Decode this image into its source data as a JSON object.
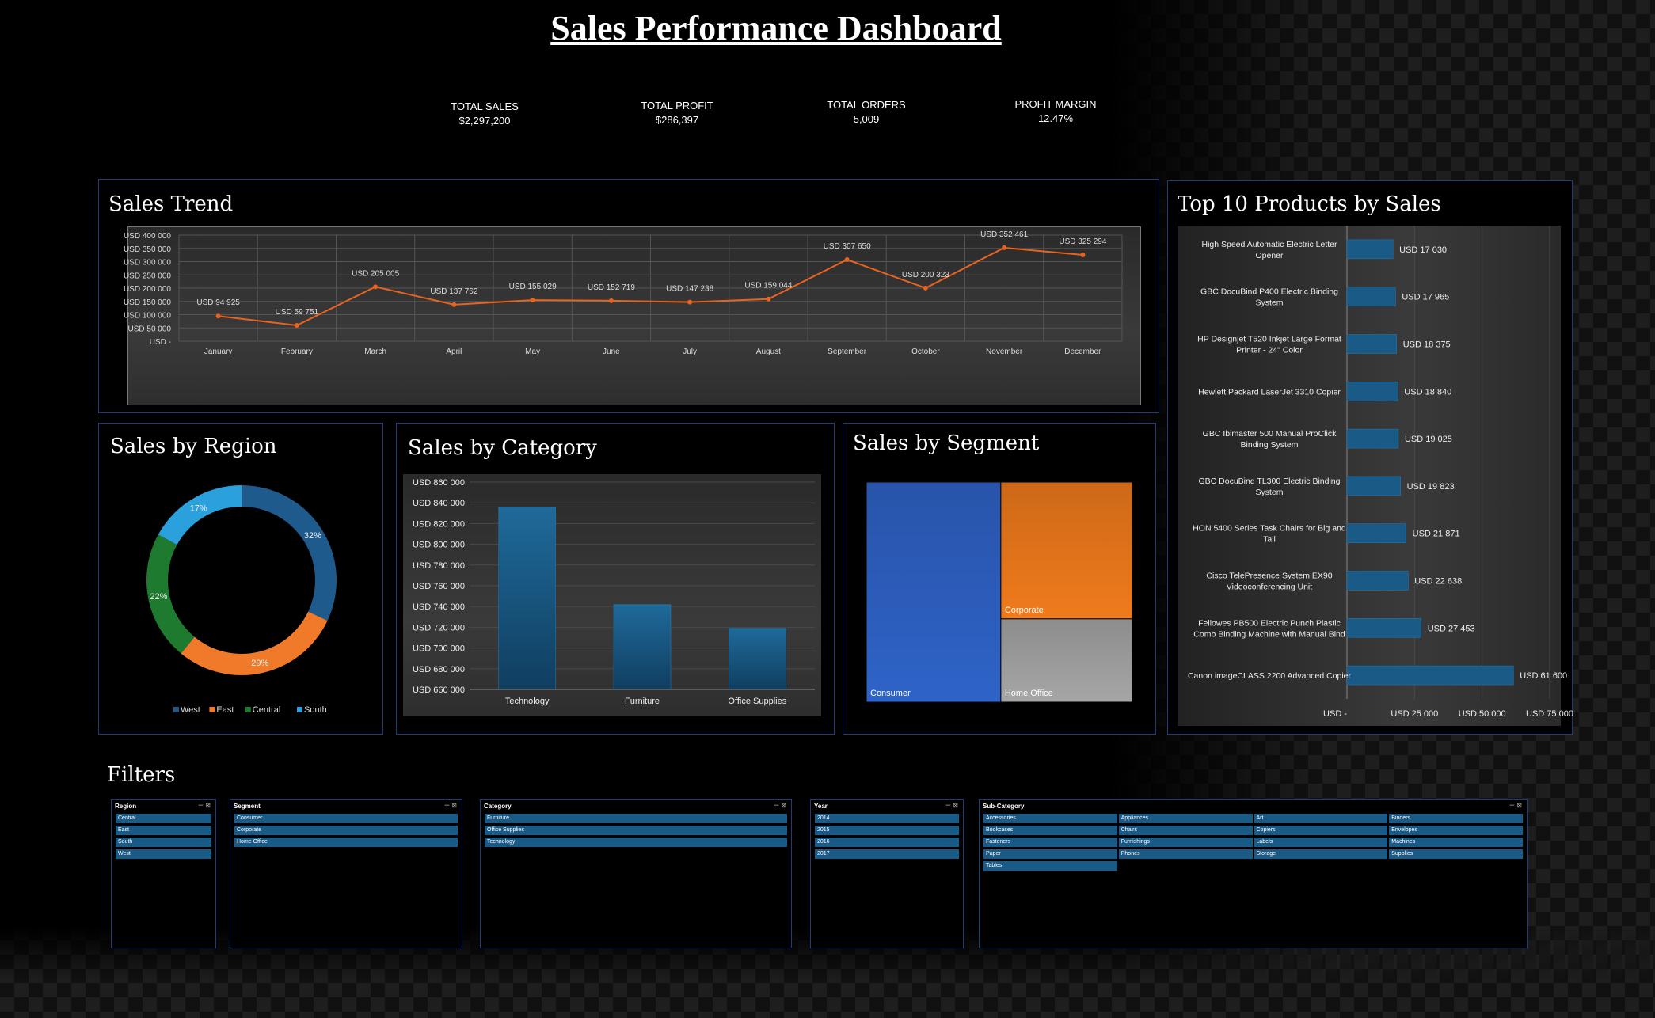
{
  "page_title": "Sales Performance Dashboard",
  "kpis": [
    {
      "label": "TOTAL SALES",
      "value": "$2,297,200"
    },
    {
      "label": "TOTAL PROFIT",
      "value": "$286,397"
    },
    {
      "label": "TOTAL ORDERS",
      "value": "5,009"
    },
    {
      "label": "PROFIT MARGIN",
      "value": "12.47%"
    }
  ],
  "panels": {
    "trend": "Sales Trend",
    "region": "Sales by Region",
    "category": "Sales by Category",
    "segment": "Sales by Segment",
    "top10": "Top 10 Products by Sales",
    "filters": "Filters"
  },
  "colors": {
    "line": "#e8641e",
    "bar": "#1a5a86",
    "west": "#1f5a8c",
    "east": "#f07a2a",
    "central": "#1e7a2e",
    "south": "#2aa0dc",
    "consumer": "#2f63c8",
    "corporate": "#f07b1c",
    "home_office": "#a6a6a6"
  },
  "chart_data": [
    {
      "type": "line",
      "title": "Sales Trend",
      "categories": [
        "January",
        "February",
        "March",
        "April",
        "May",
        "June",
        "July",
        "August",
        "September",
        "October",
        "November",
        "December"
      ],
      "values": [
        94925,
        59751,
        205005,
        137762,
        155029,
        152719,
        147238,
        159044,
        307650,
        200323,
        352461,
        325294
      ],
      "data_labels": [
        "USD 94 925",
        "USD 59 751",
        "USD 205 005",
        "USD 137 762",
        "USD 155 029",
        "USD 152 719",
        "USD 147 238",
        "USD 159 044",
        "USD 307 650",
        "USD 200 323",
        "USD 352 461",
        "USD 325 294"
      ],
      "y_ticks": [
        "USD 400 000",
        "USD 350 000",
        "USD 300 000",
        "USD 250 000",
        "USD 200 000",
        "USD 150 000",
        "USD 100 000",
        "USD 50 000",
        "USD -"
      ],
      "ylim": [
        0,
        400000
      ],
      "grid": true
    },
    {
      "type": "pie",
      "title": "Sales by Region",
      "categories": [
        "West",
        "East",
        "Central",
        "South"
      ],
      "values": [
        32,
        29,
        22,
        17
      ],
      "data_labels": [
        "32%",
        "29%",
        "22%",
        "17%"
      ],
      "legend": "bottom"
    },
    {
      "type": "bar",
      "title": "Sales by Category",
      "categories": [
        "Technology",
        "Furniture",
        "Office Supplies"
      ],
      "values": [
        836154,
        741999,
        719047
      ],
      "y_ticks": [
        "USD 860 000",
        "USD 840 000",
        "USD 820 000",
        "USD 800 000",
        "USD 780 000",
        "USD 760 000",
        "USD 740 000",
        "USD 720 000",
        "USD 700 000",
        "USD 680 000",
        "USD 660 000"
      ],
      "ylim": [
        660000,
        860000
      ],
      "grid": true
    },
    {
      "type": "treemap",
      "title": "Sales by Segment",
      "categories": [
        "Consumer",
        "Corporate",
        "Home Office"
      ],
      "values": [
        1161401,
        706146,
        429653
      ]
    },
    {
      "type": "bar",
      "orientation": "horizontal",
      "title": "Top 10 Products by Sales",
      "categories": [
        "High Speed Automatic Electric Letter Opener",
        "GBC DocuBind P400 Electric Binding System",
        "HP Designjet T520 Inkjet Large Format Printer - 24\" Color",
        "Hewlett Packard LaserJet 3310 Copier",
        "GBC Ibimaster 500 Manual ProClick Binding System",
        "GBC DocuBind TL300 Electric Binding System",
        "HON 5400 Series Task Chairs for Big and Tall",
        "Cisco TelePresence System EX90 Videoconferencing Unit",
        "Fellowes PB500 Electric Punch Plastic Comb Binding Machine with Manual Bind",
        "Canon imageCLASS 2200 Advanced Copier"
      ],
      "values": [
        17030,
        17965,
        18375,
        18840,
        19025,
        19823,
        21871,
        22638,
        27453,
        61600
      ],
      "data_labels": [
        "USD 17 030",
        "USD 17 965",
        "USD 18 375",
        "USD 18 840",
        "USD 19 025",
        "USD 19 823",
        "USD 21 871",
        "USD 22 638",
        "USD 27 453",
        "USD 61 600"
      ],
      "x_ticks": [
        "USD -",
        "USD 25 000",
        "USD 50 000",
        "USD 75 000"
      ],
      "xlim": [
        0,
        75000
      ],
      "grid": true
    }
  ],
  "filters": [
    {
      "name": "Region",
      "items": [
        "Central",
        "East",
        "South",
        "West"
      ]
    },
    {
      "name": "Segment",
      "items": [
        "Consumer",
        "Corporate",
        "Home Office"
      ]
    },
    {
      "name": "Category",
      "items": [
        "Furniture",
        "Office Supplies",
        "Technology"
      ]
    },
    {
      "name": "Year",
      "items": [
        "2014",
        "2015",
        "2016",
        "2017"
      ]
    },
    {
      "name": "Sub-Category",
      "items": [
        "Accessories",
        "Appliances",
        "Art",
        "Binders",
        "Bookcases",
        "Chairs",
        "Copiers",
        "Envelopes",
        "Fasteners",
        "Furnishings",
        "Labels",
        "Machines",
        "Paper",
        "Phones",
        "Storage",
        "Supplies",
        "Tables"
      ]
    }
  ],
  "slicer_icons": "☰ ⊠"
}
